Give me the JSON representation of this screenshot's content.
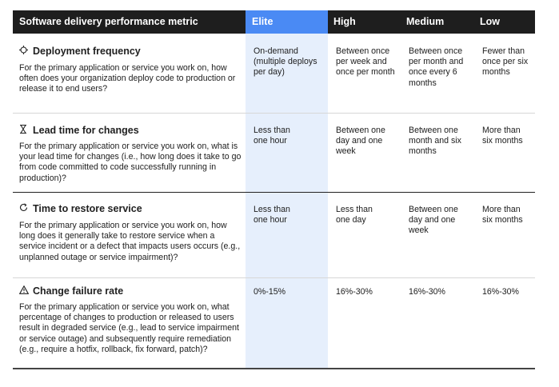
{
  "header": {
    "metric": "Software delivery performance metric",
    "elite": "Elite",
    "high": "High",
    "medium": "Medium",
    "low": "Low"
  },
  "rows": [
    {
      "icon": "deploy-icon",
      "title": "Deployment frequency",
      "question": "For the primary application or service you work on, how often does your organization deploy code to production or release it to end users?",
      "elite": "On-demand (multiple deploys per day)",
      "high": "Between once per week and once per month",
      "medium": "Between once per month and once every 6 months",
      "low": "Fewer than once per six months"
    },
    {
      "icon": "hourglass-icon",
      "title": "Lead time for changes",
      "question": "For the primary application or service you work on, what is your lead time for changes (i.e., how long does it take to go from code committed to code successfully running in production)?",
      "elite": "Less than one hour",
      "high": "Between one day and one week",
      "medium": "Between one month and six months",
      "low": "More than six months"
    },
    {
      "icon": "restore-icon",
      "title": "Time to restore service",
      "question": "For the primary application or service you work on, how long does it generally take to restore service when a service incident or a defect that impacts users occurs (e.g., unplanned outage or service impairment)?",
      "elite": "Less than one hour",
      "high": "Less than one day",
      "medium": "Between one day and one week",
      "low": "More than six months"
    },
    {
      "icon": "warning-icon",
      "title": "Change failure rate",
      "question": "For the primary application or service you work on, what percentage of changes to production or released to users result in degraded service (e.g., lead to service impairment or service outage) and subsequently require remediation (e.g., require a hotfix, rollback, fix forward, patch)?",
      "elite": "0%-15%",
      "high": "16%-30%",
      "medium": "16%-30%",
      "low": "16%-30%"
    }
  ]
}
